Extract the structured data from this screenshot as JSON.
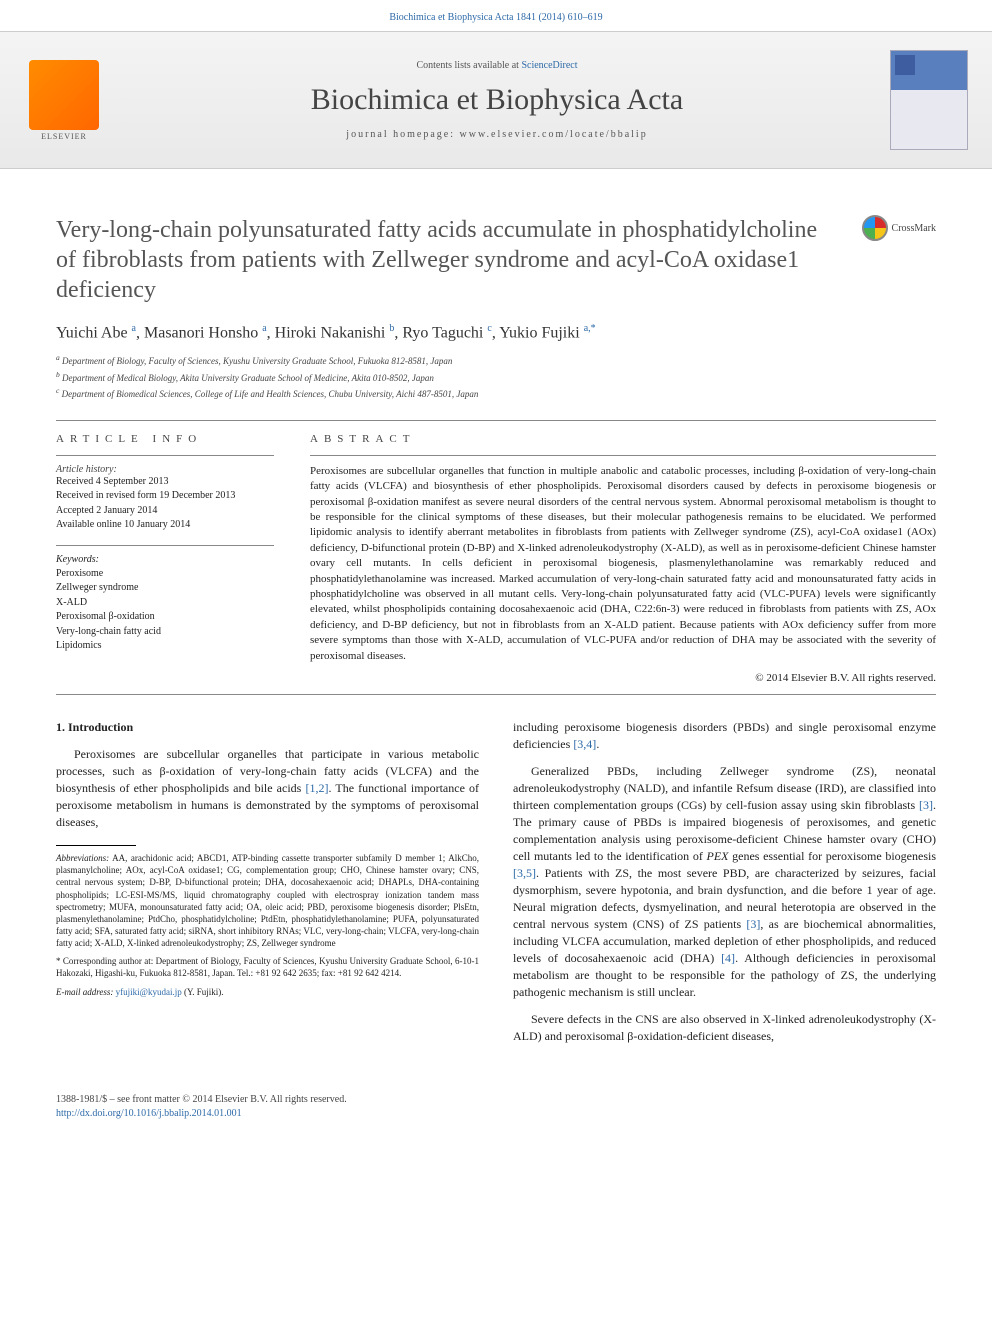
{
  "top_link": "Biochimica et Biophysica Acta 1841 (2014) 610–619",
  "header": {
    "contents_prefix": "Contents lists available at ",
    "contents_link": "ScienceDirect",
    "journal": "Biochimica et Biophysica Acta",
    "homepage_prefix": "journal homepage: ",
    "homepage": "www.elsevier.com/locate/bbalip",
    "elsevier": "ELSEVIER"
  },
  "crossmark": "CrossMark",
  "title": "Very-long-chain polyunsaturated fatty acids accumulate in phosphatidylcholine of fibroblasts from patients with Zellweger syndrome and acyl-CoA oxidase1 deficiency",
  "authors_html": "Yuichi Abe <sup>a</sup>, Masanori Honsho <sup>a</sup>, Hiroki Nakanishi <sup>b</sup>, Ryo Taguchi <sup>c</sup>, Yukio Fujiki <sup>a,*</sup>",
  "affiliations": [
    "a Department of Biology, Faculty of Sciences, Kyushu University Graduate School, Fukuoka 812-8581, Japan",
    "b Department of Medical Biology, Akita University Graduate School of Medicine, Akita 010-8502, Japan",
    "c Department of Biomedical Sciences, College of Life and Health Sciences, Chubu University, Aichi 487-8501, Japan"
  ],
  "info_heading": "ARTICLE INFO",
  "abstract_heading": "ABSTRACT",
  "history": {
    "label": "Article history:",
    "lines": [
      "Received 4 September 2013",
      "Received in revised form 19 December 2013",
      "Accepted 2 January 2014",
      "Available online 10 January 2014"
    ]
  },
  "keywords": {
    "label": "Keywords:",
    "items": [
      "Peroxisome",
      "Zellweger syndrome",
      "X-ALD",
      "Peroxisomal β-oxidation",
      "Very-long-chain fatty acid",
      "Lipidomics"
    ]
  },
  "abstract": "Peroxisomes are subcellular organelles that function in multiple anabolic and catabolic processes, including β-oxidation of very-long-chain fatty acids (VLCFA) and biosynthesis of ether phospholipids. Peroxisomal disorders caused by defects in peroxisome biogenesis or peroxisomal β-oxidation manifest as severe neural disorders of the central nervous system. Abnormal peroxisomal metabolism is thought to be responsible for the clinical symptoms of these diseases, but their molecular pathogenesis remains to be elucidated. We performed lipidomic analysis to identify aberrant metabolites in fibroblasts from patients with Zellweger syndrome (ZS), acyl-CoA oxidase1 (AOx) deficiency, D-bifunctional protein (D-BP) and X-linked adrenoleukodystrophy (X-ALD), as well as in peroxisome-deficient Chinese hamster ovary cell mutants. In cells deficient in peroxisomal biogenesis, plasmenylethanolamine was remarkably reduced and phosphatidylethanolamine was increased. Marked accumulation of very-long-chain saturated fatty acid and monounsaturated fatty acids in phosphatidylcholine was observed in all mutant cells. Very-long-chain polyunsaturated fatty acid (VLC-PUFA) levels were significantly elevated, whilst phospholipids containing docosahexaenoic acid (DHA, C22:6n-3) were reduced in fibroblasts from patients with ZS, AOx deficiency, and D-BP deficiency, but not in fibroblasts from an X-ALD patient. Because patients with AOx deficiency suffer from more severe symptoms than those with X-ALD, accumulation of VLC-PUFA and/or reduction of DHA may be associated with the severity of peroxisomal diseases.",
  "copyright": "© 2014 Elsevier B.V. All rights reserved.",
  "body": {
    "section_heading": "1. Introduction",
    "left_p1": "Peroxisomes are subcellular organelles that participate in various metabolic processes, such as β-oxidation of very-long-chain fatty acids (VLCFA) and the biosynthesis of ether phospholipids and bile acids [1,2]. The functional importance of peroxisome metabolism in humans is demonstrated by the symptoms of peroxisomal diseases,",
    "right_p1": "including peroxisome biogenesis disorders (PBDs) and single peroxisomal enzyme deficiencies [3,4].",
    "right_p2": "Generalized PBDs, including Zellweger syndrome (ZS), neonatal adrenoleukodystrophy (NALD), and infantile Refsum disease (IRD), are classified into thirteen complementation groups (CGs) by cell-fusion assay using skin fibroblasts [3]. The primary cause of PBDs is impaired biogenesis of peroxisomes, and genetic complementation analysis using peroxisome-deficient Chinese hamster ovary (CHO) cell mutants led to the identification of PEX genes essential for peroxisome biogenesis [3,5]. Patients with ZS, the most severe PBD, are characterized by seizures, facial dysmorphism, severe hypotonia, and brain dysfunction, and die before 1 year of age. Neural migration defects, dysmyelination, and neural heterotopia are observed in the central nervous system (CNS) of ZS patients [3], as are biochemical abnormalities, including VLCFA accumulation, marked depletion of ether phospholipids, and reduced levels of docosahexaenoic acid (DHA) [4]. Although deficiencies in peroxisomal metabolism are thought to be responsible for the pathology of ZS, the underlying pathogenic mechanism is still unclear.",
    "right_p3": "Severe defects in the CNS are also observed in X-linked adrenoleukodystrophy (X-ALD) and peroxisomal β-oxidation-deficient diseases,"
  },
  "footnotes": {
    "abbrev_label": "Abbreviations:",
    "abbrev": " AA, arachidonic acid; ABCD1, ATP-binding cassette transporter subfamily D member 1; AlkCho, plasmanylcholine; AOx, acyl-CoA oxidase1; CG, complementation group; CHO, Chinese hamster ovary; CNS, central nervous system; D-BP, D-bifunctional protein; DHA, docosahexaenoic acid; DHAPLs, DHA-containing phospholipids; LC-ESI-MS/MS, liquid chromatography coupled with electrospray ionization tandem mass spectrometry; MUFA, monounsaturated fatty acid; OA, oleic acid; PBD, peroxisome biogenesis disorder; PlsEtn, plasmenylethanolamine; PtdCho, phosphatidylcholine; PtdEtn, phosphatidylethanolamine; PUFA, polyunsaturated fatty acid; SFA, saturated fatty acid; siRNA, short inhibitory RNAs; VLC, very-long-chain; VLCFA, very-long-chain fatty acid; X-ALD, X-linked adrenoleukodystrophy; ZS, Zellweger syndrome",
    "corr": "* Corresponding author at: Department of Biology, Faculty of Sciences, Kyushu University Graduate School, 6-10-1 Hakozaki, Higashi-ku, Fukuoka 812-8581, Japan. Tel.: +81 92 642 2635; fax: +81 92 642 4214.",
    "email_label": "E-mail address: ",
    "email": "yfujiki@kyudai.jp",
    "email_suffix": " (Y. Fujiki)."
  },
  "footer": {
    "line1": "1388-1981/$ – see front matter © 2014 Elsevier B.V. All rights reserved.",
    "doi": "http://dx.doi.org/10.1016/j.bbalip.2014.01.001"
  },
  "colors": {
    "link": "#2e6aa8",
    "title_gray": "#555555",
    "text": "#222222"
  }
}
